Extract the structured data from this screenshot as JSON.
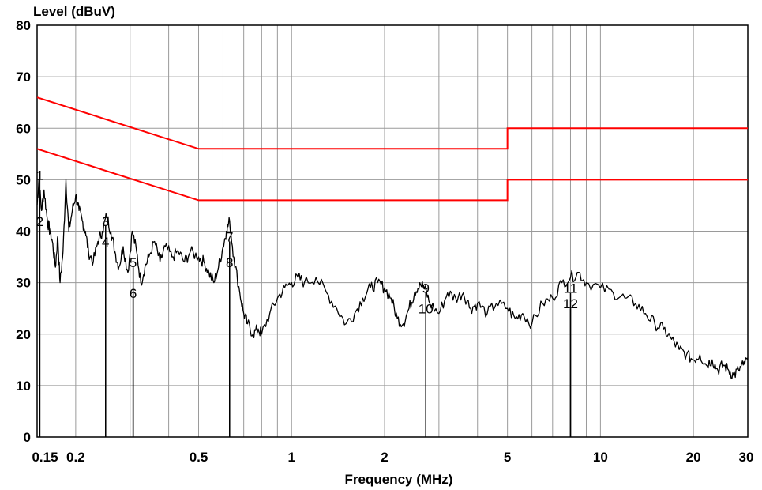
{
  "chart_data": {
    "type": "line",
    "title": "",
    "xlabel": "Frequency (MHz)",
    "ylabel": "Level (dBuV)",
    "x_scale": "log",
    "xlim": [
      0.15,
      30
    ],
    "ylim": [
      0,
      80
    ],
    "grid": true,
    "x_ticks": [
      {
        "value": 0.15,
        "label": "0.15"
      },
      {
        "value": 0.2,
        "label": "0.2"
      },
      {
        "value": 0.5,
        "label": "0.5"
      },
      {
        "value": 1,
        "label": "1"
      },
      {
        "value": 2,
        "label": "2"
      },
      {
        "value": 5,
        "label": "5"
      },
      {
        "value": 10,
        "label": "10"
      },
      {
        "value": 20,
        "label": "20"
      },
      {
        "value": 30,
        "label": "30"
      }
    ],
    "y_ticks": [
      {
        "value": 0,
        "label": "0"
      },
      {
        "value": 10,
        "label": "10"
      },
      {
        "value": 20,
        "label": "20"
      },
      {
        "value": 30,
        "label": "30"
      },
      {
        "value": 40,
        "label": "40"
      },
      {
        "value": 50,
        "label": "50"
      },
      {
        "value": 60,
        "label": "60"
      },
      {
        "value": 70,
        "label": "70"
      },
      {
        "value": 80,
        "label": "80"
      }
    ],
    "limit_lines": [
      {
        "color": "#ff0000",
        "points": [
          [
            0.15,
            66
          ],
          [
            0.5,
            56
          ],
          [
            5,
            56
          ],
          [
            5,
            60
          ],
          [
            30,
            60
          ]
        ]
      },
      {
        "color": "#ff0000",
        "points": [
          [
            0.15,
            56
          ],
          [
            0.5,
            46
          ],
          [
            5,
            46
          ],
          [
            5,
            50
          ],
          [
            30,
            50
          ]
        ]
      }
    ],
    "series": [
      {
        "color": "#000000",
        "x": [
          0.15,
          0.152,
          0.155,
          0.158,
          0.162,
          0.165,
          0.168,
          0.172,
          0.175,
          0.178,
          0.182,
          0.186,
          0.19,
          0.195,
          0.2,
          0.205,
          0.21,
          0.215,
          0.22,
          0.228,
          0.236,
          0.244,
          0.252,
          0.26,
          0.268,
          0.276,
          0.285,
          0.295,
          0.305,
          0.315,
          0.325,
          0.335,
          0.345,
          0.36,
          0.375,
          0.39,
          0.41,
          0.43,
          0.45,
          0.47,
          0.5,
          0.52,
          0.54,
          0.56,
          0.58,
          0.6,
          0.615,
          0.63,
          0.65,
          0.68,
          0.7,
          0.72,
          0.75,
          0.78,
          0.8,
          0.85,
          0.9,
          0.95,
          1.0,
          1.05,
          1.1,
          1.2,
          1.3,
          1.4,
          1.5,
          1.6,
          1.7,
          1.8,
          1.9,
          2.0,
          2.1,
          2.2,
          2.3,
          2.4,
          2.5,
          2.6,
          2.7,
          2.8,
          3.0,
          3.2,
          3.4,
          3.6,
          3.8,
          4.0,
          4.3,
          4.6,
          5.0,
          5.3,
          5.6,
          6.0,
          6.5,
          7.0,
          7.5,
          8.0,
          8.5,
          9.0,
          10.0,
          11.0,
          12.0,
          13.0,
          14.0,
          15.0,
          16.0,
          17.0,
          18.0,
          19.0,
          20.0,
          21.0,
          22.0,
          23.0,
          24.0,
          25.0,
          26.0,
          27.0,
          28.0,
          29.0,
          30.0
        ],
        "y": [
          45,
          50,
          44,
          48,
          42,
          40,
          38,
          33,
          39,
          30,
          36,
          50,
          40,
          44,
          47,
          44,
          42,
          40,
          36,
          34,
          38,
          40,
          43,
          40,
          36,
          33,
          37,
          32,
          40,
          36,
          30,
          33,
          35,
          38,
          34,
          37,
          35,
          36,
          34,
          36,
          35,
          34,
          32,
          30,
          33,
          37,
          40,
          42,
          35,
          28,
          24,
          22,
          20,
          21,
          20,
          24,
          27,
          29,
          30,
          31,
          30,
          31,
          28,
          25,
          22,
          24,
          27,
          29,
          30,
          29,
          27,
          23,
          22,
          25,
          28,
          30,
          29,
          26,
          24,
          28,
          27,
          28,
          25,
          26,
          24,
          26,
          25,
          23,
          24,
          22,
          26,
          27,
          30,
          31,
          32,
          30,
          29,
          28,
          27,
          26,
          24,
          22,
          21,
          19,
          17,
          16,
          15,
          16,
          14,
          15,
          13,
          14,
          13,
          12,
          13,
          14,
          15
        ]
      }
    ],
    "markers": [
      {
        "label": "1",
        "x": 0.153,
        "y": 50
      },
      {
        "label": "2",
        "x": 0.153,
        "y": 41
      },
      {
        "label": "3",
        "x": 0.25,
        "y": 41
      },
      {
        "label": "4",
        "x": 0.25,
        "y": 37
      },
      {
        "label": "5",
        "x": 0.307,
        "y": 33
      },
      {
        "label": "6",
        "x": 0.307,
        "y": 27
      },
      {
        "label": "7",
        "x": 0.63,
        "y": 38
      },
      {
        "label": "8",
        "x": 0.63,
        "y": 33
      },
      {
        "label": "9",
        "x": 2.72,
        "y": 28
      },
      {
        "label": "10",
        "x": 2.72,
        "y": 24
      },
      {
        "label": "11",
        "x": 8.0,
        "y": 28
      },
      {
        "label": "12",
        "x": 8.0,
        "y": 25
      }
    ]
  }
}
